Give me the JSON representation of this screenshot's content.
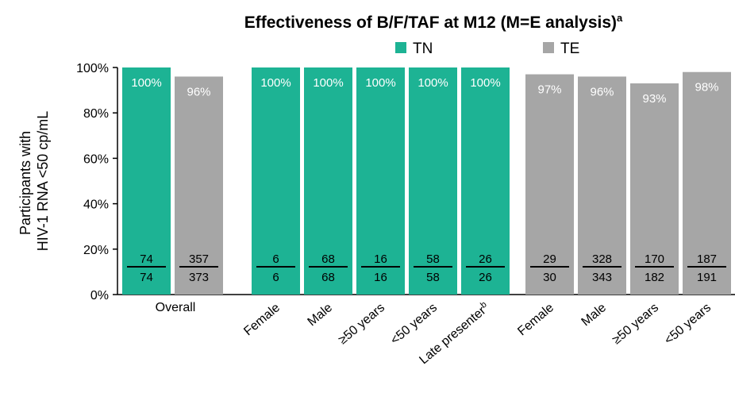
{
  "chart_data": {
    "type": "bar",
    "title": "Effectiveness of B/F/TAF at M12 (M=E analysis)",
    "title_superscript": "a",
    "ylabel_lines": [
      "Participants with",
      "HIV-1 RNA <50 cp/mL"
    ],
    "ylim": [
      0,
      100
    ],
    "yticks": [
      "0%",
      "20%",
      "40%",
      "60%",
      "80%",
      "100%"
    ],
    "legend": [
      {
        "name": "TN",
        "color": "#1db394"
      },
      {
        "name": "TE",
        "color": "#a6a6a6"
      }
    ],
    "legend_position": "top",
    "grid": false,
    "bars": [
      {
        "group": "TN",
        "category": "",
        "value": 100,
        "label": "100%",
        "numerator": "74",
        "denominator": "74"
      },
      {
        "group": "TE",
        "category": "",
        "value": 96,
        "label": "96%",
        "numerator": "357",
        "denominator": "373"
      },
      {
        "group": "TN",
        "category": "Female",
        "value": 100,
        "label": "100%",
        "numerator": "6",
        "denominator": "6"
      },
      {
        "group": "TN",
        "category": "Male",
        "value": 100,
        "label": "100%",
        "numerator": "68",
        "denominator": "68"
      },
      {
        "group": "TN",
        "category": "≥50 years",
        "value": 100,
        "label": "100%",
        "numerator": "16",
        "denominator": "16"
      },
      {
        "group": "TN",
        "category": "<50 years",
        "value": 100,
        "label": "100%",
        "numerator": "58",
        "denominator": "58"
      },
      {
        "group": "TN",
        "category": "Late presenter",
        "category_sup": "b",
        "value": 100,
        "label": "100%",
        "numerator": "26",
        "denominator": "26"
      },
      {
        "group": "TE",
        "category": "Female",
        "value": 97,
        "label": "97%",
        "numerator": "29",
        "denominator": "30"
      },
      {
        "group": "TE",
        "category": "Male",
        "value": 96,
        "label": "96%",
        "numerator": "328",
        "denominator": "343"
      },
      {
        "group": "TE",
        "category": "≥50 years",
        "value": 93,
        "label": "93%",
        "numerator": "170",
        "denominator": "182"
      },
      {
        "group": "TE",
        "category": "<50 years",
        "value": 98,
        "label": "98%",
        "numerator": "187",
        "denominator": "191"
      }
    ],
    "overall_label": "Overall"
  }
}
